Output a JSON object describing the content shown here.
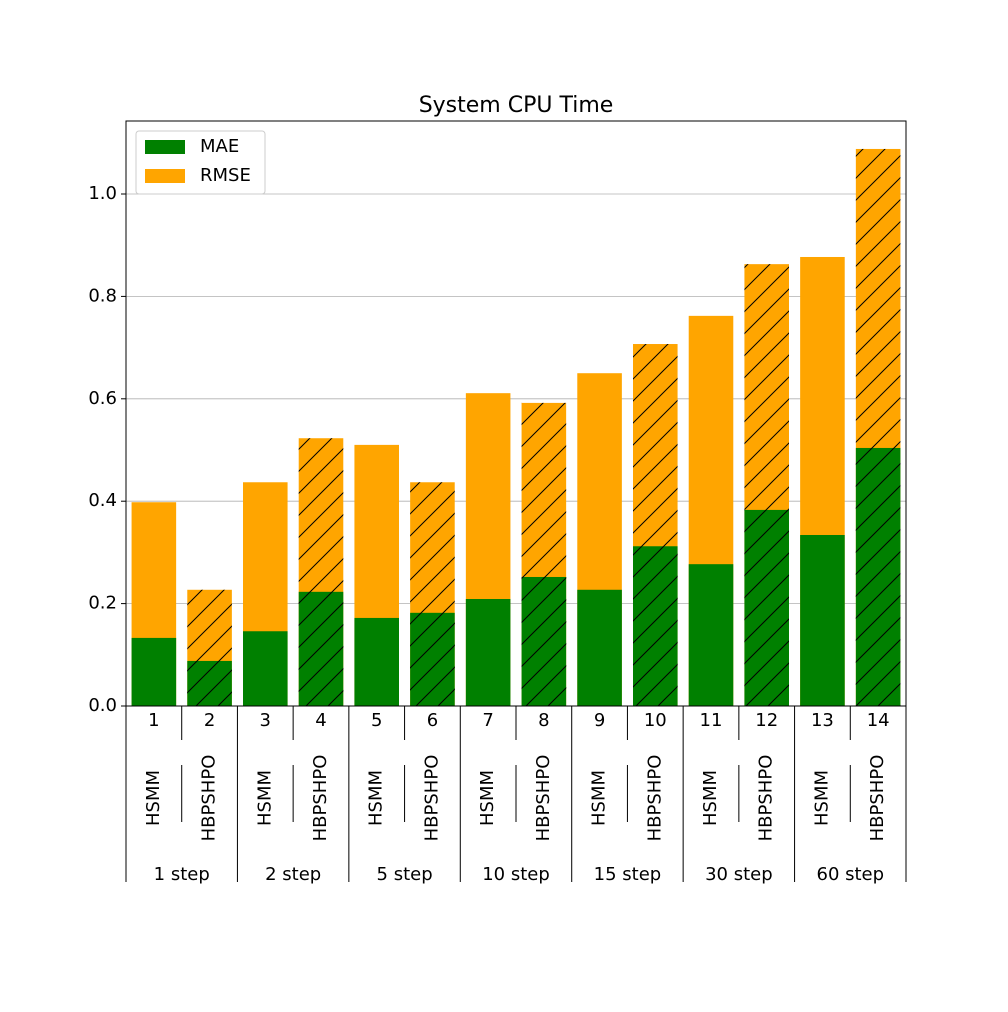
{
  "chart_data": {
    "type": "bar",
    "title": "System CPU Time",
    "categories": [
      "1",
      "2",
      "3",
      "4",
      "5",
      "6",
      "7",
      "8",
      "9",
      "10",
      "11",
      "12",
      "13",
      "14"
    ],
    "methods": [
      "HSMM",
      "HBPSHPO",
      "HSMM",
      "HBPSHPO",
      "HSMM",
      "HBPSHPO",
      "HSMM",
      "HBPSHPO",
      "HSMM",
      "HBPSHPO",
      "HSMM",
      "HBPSHPO",
      "HSMM",
      "HBPSHPO"
    ],
    "groups": [
      "1 step",
      "2 step",
      "5 step",
      "10 step",
      "15 step",
      "30 step",
      "60 step"
    ],
    "hatched_method": "HBPSHPO",
    "series": [
      {
        "name": "RMSE",
        "color": "#ffa500",
        "values": [
          0.398,
          0.227,
          0.437,
          0.523,
          0.51,
          0.437,
          0.611,
          0.592,
          0.65,
          0.707,
          0.762,
          0.863,
          0.877,
          1.088
        ]
      },
      {
        "name": "MAE",
        "color": "#008000",
        "values": [
          0.133,
          0.088,
          0.146,
          0.223,
          0.172,
          0.182,
          0.209,
          0.252,
          0.227,
          0.312,
          0.277,
          0.383,
          0.334,
          0.504
        ]
      }
    ],
    "ylim": [
      0,
      1.1426
    ],
    "yticks": [
      {
        "value": 0,
        "label": "0.0"
      },
      0.2,
      0.4,
      0.6,
      0.8,
      {
        "value": 1,
        "label": "1.0"
      }
    ],
    "grid": true,
    "legend": "upper left"
  }
}
